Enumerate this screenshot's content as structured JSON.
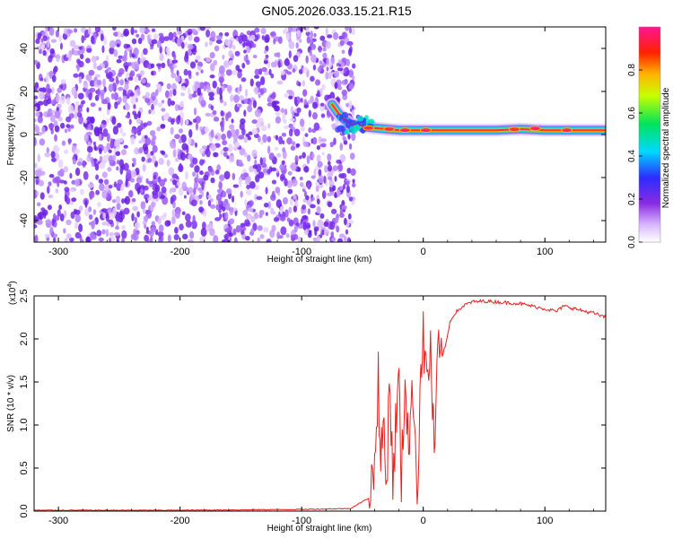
{
  "title": "GN05.2026.033.15.21.R15",
  "colors": {
    "snr_line": "#e8201e",
    "scatter_dot": "#7a2ef0",
    "ridge_core": "#ff2a55"
  },
  "chart_data": [
    {
      "type": "heatmap",
      "xlabel": "Height of straight line (km)",
      "ylabel": "Frequency (Hz)",
      "xlim": [
        -320,
        150
      ],
      "ylim": [
        -50,
        50
      ],
      "x_ticks": [
        -300,
        -200,
        -100,
        0,
        100
      ],
      "y_ticks": [
        -40,
        -20,
        0,
        20,
        40
      ],
      "colorbar": {
        "label": "Normalized spectral amplitude",
        "range": [
          0,
          1
        ],
        "ticks": [
          "0.0",
          "0.2",
          "0.4",
          "0.6",
          "0.8"
        ],
        "tick_values": [
          0.0,
          0.2,
          0.4,
          0.6,
          0.8
        ],
        "colormap": "rainbow (white-violet-blue-cyan-green-yellow-red-magenta)"
      },
      "noise_region_x": [
        -320,
        -65
      ],
      "ridge": {
        "x": [
          -75,
          -70,
          -65,
          -60,
          -50,
          -40,
          -30,
          -20,
          -10,
          0,
          20,
          40,
          60,
          80,
          100,
          120,
          150
        ],
        "frequency_hz": [
          14,
          10,
          7,
          5,
          4,
          3,
          2.5,
          2,
          2,
          2,
          2,
          2,
          2,
          2.5,
          2,
          2,
          2
        ]
      },
      "grid": false
    },
    {
      "type": "line",
      "xlabel": "Height of straight line (km)",
      "ylabel": "SNR (10 * v/v)",
      "y_multiplier": "(x10",
      "y_multiplier_exp": "4",
      "xlim": [
        -320,
        150
      ],
      "ylim": [
        0,
        2.5
      ],
      "x_ticks": [
        -300,
        -200,
        -100,
        0,
        100
      ],
      "y_ticks": [
        "0.0",
        "0.5",
        "1.0",
        "1.5",
        "2.0",
        "2.5"
      ],
      "y_tick_values": [
        0,
        0.5,
        1.0,
        1.5,
        2.0,
        2.5
      ],
      "series": [
        {
          "x": [
            -320,
            -200,
            -100,
            -60,
            -45,
            -40,
            -37,
            -35,
            -33,
            -30,
            -28,
            -25,
            -22,
            -20,
            -18,
            -15,
            -12,
            -10,
            -8,
            -5,
            -2,
            0,
            3,
            6,
            9,
            12,
            14,
            18,
            22,
            26,
            30,
            35,
            40,
            50,
            60,
            70,
            80,
            90,
            100,
            110,
            115,
            120,
            130,
            140,
            150
          ],
          "y": [
            0.01,
            0.01,
            0.02,
            0.03,
            0.15,
            0.5,
            1.6,
            0.4,
            1.1,
            0.2,
            1.7,
            0.3,
            1.2,
            1.5,
            0.3,
            1.6,
            0.8,
            1.1,
            1.4,
            0.2,
            1.7,
            2.0,
            1.5,
            1.9,
            0.6,
            1.8,
            1.75,
            1.9,
            2.2,
            2.3,
            2.35,
            2.4,
            2.43,
            2.44,
            2.43,
            2.42,
            2.41,
            2.38,
            2.35,
            2.32,
            2.38,
            2.37,
            2.33,
            2.3,
            2.25
          ]
        }
      ],
      "grid": false
    }
  ]
}
